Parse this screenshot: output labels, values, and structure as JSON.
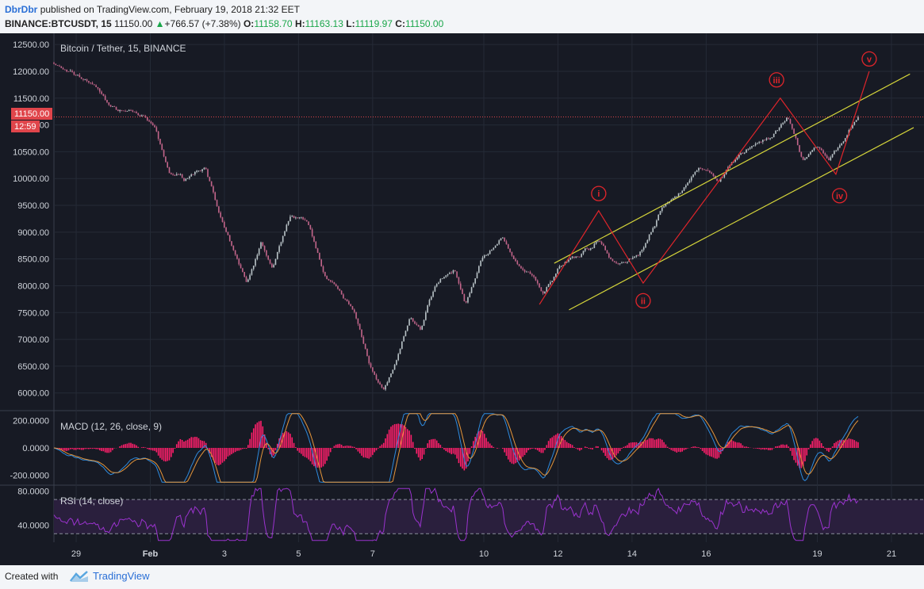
{
  "header": {
    "author": "DbrDbr",
    "published_text": "published on TradingView.com, February 19, 2018 21:32 EET",
    "symbol": "BINANCE:BTCUSDT, 15",
    "last": "11150.00",
    "change": "+766.57 (+7.38%)",
    "o_label": "O:",
    "o_value": "11158.70",
    "h_label": "H:",
    "h_value": "11163.13",
    "l_label": "L:",
    "l_value": "11119.97",
    "c_label": "C:",
    "c_value": "11150.00"
  },
  "chart_title": "Bitcoin / Tether, 15, BINANCE",
  "price_tag": {
    "price": "11150.00",
    "countdown": "12:59"
  },
  "macd_label": "MACD (12, 26, close, 9)",
  "rsi_label": "RSI (14, close)",
  "footer": {
    "created_with": "Created with",
    "brand": "TradingView"
  },
  "colors": {
    "background": "#171a24",
    "candle_up": "#b8c2c6",
    "candle_down": "#c2658a",
    "channel": "#d4d43a",
    "wave": "#e0252b",
    "macd_line": "#2e8bde",
    "signal_line": "#e5953a",
    "histogram": "#ff1f6b",
    "rsi": "#9b33cf"
  },
  "chart_data": [
    {
      "type": "candlestick",
      "title": "Bitcoin / Tether, 15, BINANCE",
      "y_ticks": [
        "12500.00",
        "12000.00",
        "11500.00",
        "11000.00",
        "10500.00",
        "10000.00",
        "9500.00",
        "9000.00",
        "8500.00",
        "8000.00",
        "7500.00",
        "7000.00",
        "6500.00",
        "6000.00"
      ],
      "ylim": [
        5700,
        12650
      ],
      "x_ticks": [
        "29",
        "Feb",
        "3",
        "5",
        "7",
        "10",
        "12",
        "14",
        "16",
        "19",
        "21"
      ],
      "x_tick_days": [
        29,
        31,
        33,
        35,
        37,
        40,
        42,
        44,
        46,
        49,
        51
      ],
      "xlim": [
        28.4,
        51.6
      ],
      "price_path": [
        {
          "d": 28.4,
          "p": 12150
        },
        {
          "d": 28.8,
          "p": 11950
        },
        {
          "d": 29.4,
          "p": 11800
        },
        {
          "d": 30.0,
          "p": 11300
        },
        {
          "d": 30.6,
          "p": 11250
        },
        {
          "d": 31.1,
          "p": 10950
        },
        {
          "d": 31.5,
          "p": 10100
        },
        {
          "d": 31.9,
          "p": 10000
        },
        {
          "d": 32.5,
          "p": 10250
        },
        {
          "d": 32.9,
          "p": 9200
        },
        {
          "d": 33.3,
          "p": 8500
        },
        {
          "d": 33.6,
          "p": 8050
        },
        {
          "d": 34.0,
          "p": 8800
        },
        {
          "d": 34.3,
          "p": 8300
        },
        {
          "d": 34.8,
          "p": 9350
        },
        {
          "d": 35.3,
          "p": 9150
        },
        {
          "d": 35.7,
          "p": 8200
        },
        {
          "d": 36.1,
          "p": 7850
        },
        {
          "d": 36.5,
          "p": 7500
        },
        {
          "d": 36.9,
          "p": 6600
        },
        {
          "d": 37.3,
          "p": 6050
        },
        {
          "d": 37.6,
          "p": 6500
        },
        {
          "d": 38.0,
          "p": 7350
        },
        {
          "d": 38.3,
          "p": 7200
        },
        {
          "d": 38.7,
          "p": 8050
        },
        {
          "d": 39.2,
          "p": 8300
        },
        {
          "d": 39.5,
          "p": 7650
        },
        {
          "d": 40.0,
          "p": 8600
        },
        {
          "d": 40.5,
          "p": 8850
        },
        {
          "d": 40.9,
          "p": 8350
        },
        {
          "d": 41.3,
          "p": 8250
        },
        {
          "d": 41.6,
          "p": 7900
        },
        {
          "d": 42.0,
          "p": 8350
        },
        {
          "d": 42.6,
          "p": 8600
        },
        {
          "d": 43.1,
          "p": 8850
        },
        {
          "d": 43.5,
          "p": 8450
        },
        {
          "d": 43.9,
          "p": 8450
        },
        {
          "d": 44.3,
          "p": 8700
        },
        {
          "d": 44.8,
          "p": 9400
        },
        {
          "d": 45.3,
          "p": 9750
        },
        {
          "d": 45.8,
          "p": 10200
        },
        {
          "d": 46.3,
          "p": 9950
        },
        {
          "d": 46.8,
          "p": 10350
        },
        {
          "d": 47.3,
          "p": 10650
        },
        {
          "d": 47.8,
          "p": 10800
        },
        {
          "d": 48.2,
          "p": 11100
        },
        {
          "d": 48.6,
          "p": 10350
        },
        {
          "d": 49.0,
          "p": 10600
        },
        {
          "d": 49.3,
          "p": 10300
        },
        {
          "d": 49.6,
          "p": 10600
        },
        {
          "d": 49.9,
          "p": 10950
        },
        {
          "d": 50.1,
          "p": 11150
        }
      ],
      "last_price": 11150,
      "channel_lines": [
        {
          "from": {
            "d": 41.9,
            "p": 8420
          },
          "to": {
            "d": 51.5,
            "p": 11950
          }
        },
        {
          "from": {
            "d": 42.3,
            "p": 7550
          },
          "to": {
            "d": 51.6,
            "p": 10950
          }
        }
      ],
      "wave_path": [
        {
          "d": 41.5,
          "p": 7650
        },
        {
          "d": 43.1,
          "p": 9400
        },
        {
          "d": 44.3,
          "p": 8050
        },
        {
          "d": 48.0,
          "p": 11500
        },
        {
          "d": 49.5,
          "p": 10080
        },
        {
          "d": 50.4,
          "p": 12000
        }
      ],
      "wave_labels": [
        {
          "text": "i",
          "d": 43.1,
          "p": 9720
        },
        {
          "text": "ii",
          "d": 44.3,
          "p": 7720
        },
        {
          "text": "iii",
          "d": 47.9,
          "p": 11840
        },
        {
          "text": "iv",
          "d": 49.6,
          "p": 9680
        },
        {
          "text": "v",
          "d": 50.4,
          "p": 12230
        }
      ]
    },
    {
      "type": "line",
      "title": "MACD (12, 26, close, 9)",
      "y_ticks": [
        "200.0000",
        "0.0000",
        "-200.0000"
      ],
      "ylim": [
        -260,
        260
      ],
      "series": [
        "MACD",
        "Signal",
        "Histogram"
      ]
    },
    {
      "type": "line",
      "title": "RSI (14, close)",
      "y_ticks": [
        "80.0000",
        "40.0000"
      ],
      "bands": [
        70,
        30
      ],
      "ylim": [
        20,
        85
      ]
    }
  ]
}
